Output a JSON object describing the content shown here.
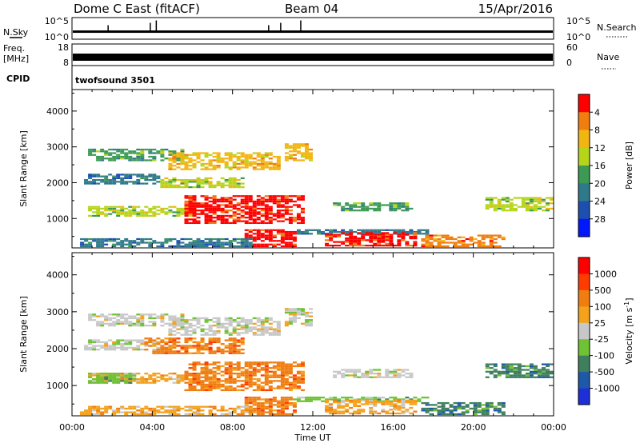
{
  "header": {
    "station": "Dome C East (fitACF)",
    "beam": "Beam 04",
    "date": "15/Apr/2016"
  },
  "side_labels": {
    "nsky": "N.Sky",
    "freq_line1": "Freq.",
    "freq_line2": "[MHz]",
    "cpid": "CPID",
    "nsearch": "N.Search",
    "nave": "Nave"
  },
  "cpid_value": "twofsound 3501",
  "chart_data": [
    {
      "type": "line",
      "name": "noise-panel",
      "left_ticks": [
        "10^5",
        "10^0"
      ],
      "right_ticks": [
        "10^5",
        "10^0"
      ],
      "baseline_level": 0.35,
      "spikes_x_hours": [
        1.8,
        3.9,
        4.2,
        9.8,
        10.4,
        11.4
      ]
    },
    {
      "type": "line",
      "name": "freq-nave-panel",
      "left_ticks": [
        "18",
        "8"
      ],
      "right_ticks": [
        "60",
        "0"
      ],
      "freq_level_mhz": 10.3
    },
    {
      "type": "heatmap",
      "name": "power",
      "ylabel": "Slant Range [km]",
      "xlabel": "Time UT",
      "xticks": [
        "00:00",
        "04:00",
        "08:00",
        "12:00",
        "16:00",
        "20:00",
        "00:00"
      ],
      "xlim_hours": [
        0,
        24
      ],
      "yticks": [
        1000,
        2000,
        3000,
        4000
      ],
      "ylim_km": [
        180,
        4600
      ],
      "colorbar": {
        "label": "Power [dB]",
        "ticks": [
          "4",
          "8",
          "12",
          "16",
          "20",
          "24",
          "28"
        ],
        "colors": [
          "#0018ff",
          "#1c4faf",
          "#2f7a8a",
          "#3c9a55",
          "#b5d51b",
          "#f2b612",
          "#f07d10",
          "#ff0000"
        ]
      },
      "regions": [
        {
          "t0": 0.8,
          "t1": 5.6,
          "r0": 2600,
          "r1": 2950,
          "c": 3
        },
        {
          "t0": 4.8,
          "t1": 10.2,
          "r0": 2350,
          "r1": 2850,
          "c": 5
        },
        {
          "t0": 0.6,
          "t1": 4.4,
          "r0": 1950,
          "r1": 2250,
          "c": 2
        },
        {
          "t0": 4.4,
          "t1": 8.6,
          "r0": 1850,
          "r1": 2150,
          "c": 4
        },
        {
          "t0": 0.8,
          "t1": 6.2,
          "r0": 1050,
          "r1": 1350,
          "c": 4
        },
        {
          "t0": 5.6,
          "t1": 11.4,
          "r0": 850,
          "r1": 1650,
          "c": 7
        },
        {
          "t0": 8.6,
          "t1": 11.0,
          "r0": 200,
          "r1": 700,
          "c": 7
        },
        {
          "t0": 11.0,
          "t1": 17.6,
          "r0": 550,
          "r1": 700,
          "c": 2
        },
        {
          "t0": 12.6,
          "t1": 17.0,
          "r0": 220,
          "r1": 600,
          "c": 7
        },
        {
          "t0": 13.0,
          "t1": 16.8,
          "r0": 1200,
          "r1": 1450,
          "c": 3
        },
        {
          "t0": 17.4,
          "t1": 21.4,
          "r0": 200,
          "r1": 550,
          "c": 6
        },
        {
          "t0": 20.6,
          "t1": 23.8,
          "r0": 1200,
          "r1": 1600,
          "c": 4
        },
        {
          "t0": 0.4,
          "t1": 9.0,
          "r0": 200,
          "r1": 450,
          "c": 2
        },
        {
          "t0": 10.6,
          "t1": 11.8,
          "r0": 2600,
          "r1": 3100,
          "c": 5
        }
      ]
    },
    {
      "type": "heatmap",
      "name": "velocity",
      "ylabel": "Slant Range [km]",
      "xlabel": "Time UT",
      "xticks": [
        "00:00",
        "04:00",
        "08:00",
        "12:00",
        "16:00",
        "20:00",
        "00:00"
      ],
      "xlim_hours": [
        0,
        24
      ],
      "yticks": [
        1000,
        2000,
        3000,
        4000
      ],
      "ylim_km": [
        180,
        4600
      ],
      "colorbar": {
        "label": "Velocity [m s",
        "label_sup": "-1",
        "label_tail": "]",
        "ticks": [
          "1000",
          "500",
          "100",
          "25",
          "-25",
          "-100",
          "-500",
          "-1000"
        ],
        "colors": [
          "#1e2fd8",
          "#1e58a8",
          "#3f7f5e",
          "#6ec233",
          "#c8c8c8",
          "#f4a11b",
          "#f07d10",
          "#ff3c00",
          "#ff0000"
        ]
      },
      "regions": [
        {
          "t0": 0.8,
          "t1": 5.6,
          "r0": 2600,
          "r1": 2950,
          "c": 4
        },
        {
          "t0": 4.8,
          "t1": 10.2,
          "r0": 2350,
          "r1": 2850,
          "c": 4
        },
        {
          "t0": 0.6,
          "t1": 4.4,
          "r0": 1950,
          "r1": 2250,
          "c": 4
        },
        {
          "t0": 3.6,
          "t1": 8.6,
          "r0": 1850,
          "r1": 2300,
          "c": 6
        },
        {
          "t0": 0.8,
          "t1": 6.2,
          "r0": 1050,
          "r1": 1350,
          "c": 5
        },
        {
          "t0": 0.8,
          "t1": 3.2,
          "r0": 1050,
          "r1": 1350,
          "c": 3
        },
        {
          "t0": 5.6,
          "t1": 11.4,
          "r0": 850,
          "r1": 1650,
          "c": 6
        },
        {
          "t0": 8.6,
          "t1": 11.0,
          "r0": 200,
          "r1": 700,
          "c": 6
        },
        {
          "t0": 11.0,
          "t1": 17.6,
          "r0": 550,
          "r1": 700,
          "c": 3
        },
        {
          "t0": 12.6,
          "t1": 17.0,
          "r0": 220,
          "r1": 600,
          "c": 5
        },
        {
          "t0": 13.0,
          "t1": 16.8,
          "r0": 1200,
          "r1": 1450,
          "c": 4
        },
        {
          "t0": 17.4,
          "t1": 21.4,
          "r0": 200,
          "r1": 550,
          "c": 2
        },
        {
          "t0": 20.6,
          "t1": 23.8,
          "r0": 1200,
          "r1": 1600,
          "c": 2
        },
        {
          "t0": 0.4,
          "t1": 9.0,
          "r0": 200,
          "r1": 450,
          "c": 5
        },
        {
          "t0": 10.6,
          "t1": 11.8,
          "r0": 2600,
          "r1": 3100,
          "c": 4
        }
      ]
    }
  ]
}
